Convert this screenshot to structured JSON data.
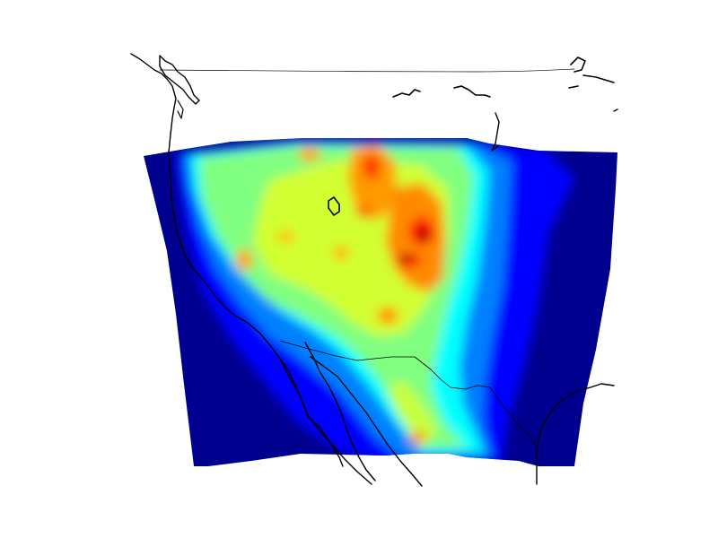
{
  "map": {
    "type": "gridded-heatmap",
    "colormap": "jet",
    "background": "#ffffff",
    "outside_value_color": "#00008f",
    "coastline_color": "#000000",
    "border_color": "#000000",
    "colormap_stops": [
      "#00008f",
      "#0000ff",
      "#0080ff",
      "#00ffff",
      "#80ff80",
      "#ffff00",
      "#ff8000",
      "#ff0000",
      "#800000"
    ]
  }
}
